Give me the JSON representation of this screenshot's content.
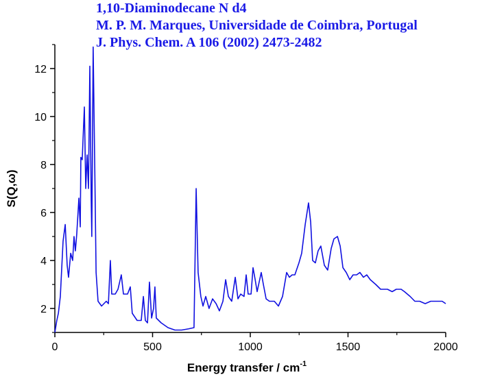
{
  "chart_data": {
    "type": "line",
    "title_lines": [
      "1,10-Diaminodecane N d4",
      "M. P. M. Marques, Universidade de Coimbra, Portugal",
      "J. Phys. Chem. A 106 (2002) 2473-2482"
    ],
    "x_label": "Energy transfer / cm",
    "x_label_superscript": "-1",
    "y_label": "S(Q,ω)",
    "color": "#1010e0",
    "xlim": [
      0,
      2000
    ],
    "ylim": [
      1,
      13
    ],
    "xticks": [
      0,
      500,
      1000,
      1500,
      2000
    ],
    "yticks": [
      2,
      4,
      6,
      8,
      10,
      12
    ],
    "xminorticks": [
      250,
      750,
      1250,
      1750
    ],
    "yminorticks": [
      1,
      3,
      5,
      7,
      9,
      11,
      13
    ],
    "x": [
      0,
      10,
      18,
      28,
      42,
      53,
      63,
      70,
      81,
      91,
      98,
      105,
      112,
      123,
      130,
      133,
      140,
      151,
      158,
      165,
      172,
      179,
      186,
      189,
      196,
      204,
      211,
      221,
      239,
      263,
      274,
      284,
      291,
      309,
      323,
      340,
      351,
      372,
      386,
      396,
      421,
      442,
      453,
      463,
      474,
      484,
      495,
      505,
      512,
      519,
      544,
      579,
      614,
      649,
      684,
      712,
      723,
      733,
      747,
      758,
      772,
      789,
      807,
      825,
      842,
      860,
      874,
      888,
      905,
      923,
      937,
      951,
      968,
      979,
      989,
      1004,
      1014,
      1025,
      1035,
      1056,
      1067,
      1081,
      1098,
      1123,
      1144,
      1165,
      1186,
      1200,
      1214,
      1228,
      1249,
      1263,
      1281,
      1298,
      1309,
      1319,
      1333,
      1347,
      1361,
      1379,
      1396,
      1414,
      1428,
      1446,
      1460,
      1474,
      1491,
      1509,
      1526,
      1544,
      1561,
      1579,
      1596,
      1614,
      1642,
      1667,
      1702,
      1726,
      1747,
      1772,
      1789,
      1818,
      1842,
      1867,
      1895,
      1923,
      1951,
      1982,
      2000
    ],
    "values": [
      1.0,
      1.5,
      1.8,
      2.5,
      4.8,
      5.5,
      3.8,
      3.3,
      4.3,
      4.0,
      5.0,
      4.4,
      5.1,
      6.6,
      5.4,
      8.3,
      8.2,
      10.4,
      7.0,
      8.4,
      7.0,
      12.1,
      6.5,
      5.0,
      12.9,
      8.0,
      3.5,
      2.3,
      2.1,
      2.3,
      2.2,
      4.0,
      2.6,
      2.6,
      2.8,
      3.4,
      2.6,
      2.6,
      2.9,
      1.8,
      1.5,
      1.5,
      2.5,
      1.5,
      1.4,
      3.1,
      1.6,
      2.0,
      2.9,
      1.6,
      1.4,
      1.2,
      1.1,
      1.1,
      1.15,
      1.2,
      7.0,
      3.5,
      2.5,
      2.1,
      2.5,
      2.0,
      2.4,
      2.2,
      1.9,
      2.3,
      3.2,
      2.5,
      2.3,
      3.3,
      2.4,
      2.6,
      2.5,
      3.4,
      2.6,
      2.6,
      3.7,
      3.2,
      2.7,
      3.5,
      3.0,
      2.4,
      2.3,
      2.3,
      2.1,
      2.5,
      3.5,
      3.3,
      3.4,
      3.4,
      3.9,
      4.3,
      5.5,
      6.4,
      5.6,
      4.0,
      3.9,
      4.4,
      4.6,
      3.8,
      3.6,
      4.5,
      4.9,
      5.0,
      4.6,
      3.7,
      3.5,
      3.2,
      3.4,
      3.4,
      3.5,
      3.3,
      3.4,
      3.2,
      3.0,
      2.8,
      2.8,
      2.7,
      2.8,
      2.8,
      2.7,
      2.5,
      2.3,
      2.3,
      2.2,
      2.3,
      2.3,
      2.3,
      2.2
    ]
  }
}
